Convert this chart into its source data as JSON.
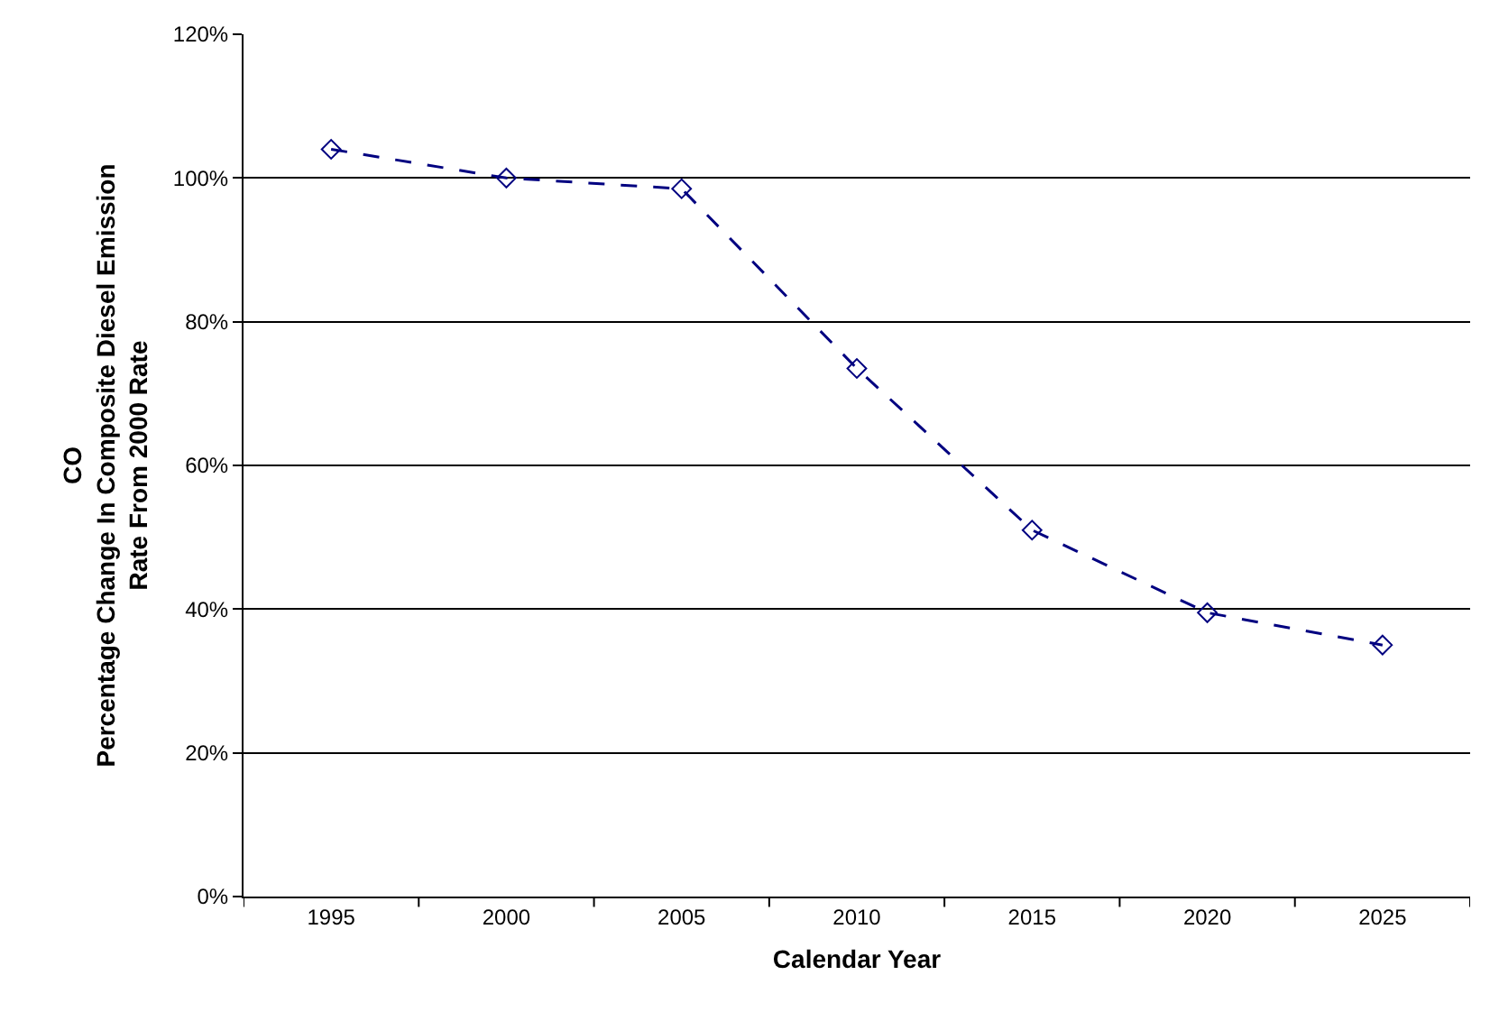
{
  "chart_data": {
    "type": "line",
    "xlabel": "Calendar Year",
    "ylabel": "CO\nPercentage Change In Composite Diesel Emission\nRate From 2000 Rate",
    "categories": [
      "1995",
      "2000",
      "2005",
      "2010",
      "2015",
      "2020",
      "2025"
    ],
    "series": [
      {
        "color": "#000080",
        "values": [
          104,
          100,
          98.5,
          73.5,
          51,
          39.5,
          35
        ]
      }
    ],
    "ylim": [
      0,
      120
    ],
    "yticks": [
      {
        "value": 0,
        "label": "0%"
      },
      {
        "value": 20,
        "label": "20%"
      },
      {
        "value": 40,
        "label": "40%"
      },
      {
        "value": 60,
        "label": "60%"
      },
      {
        "value": 80,
        "label": "80%"
      },
      {
        "value": 100,
        "label": "100%"
      },
      {
        "value": 120,
        "label": "120%"
      }
    ],
    "grid": "y",
    "marker": "diamond",
    "line_style": "dashed"
  }
}
